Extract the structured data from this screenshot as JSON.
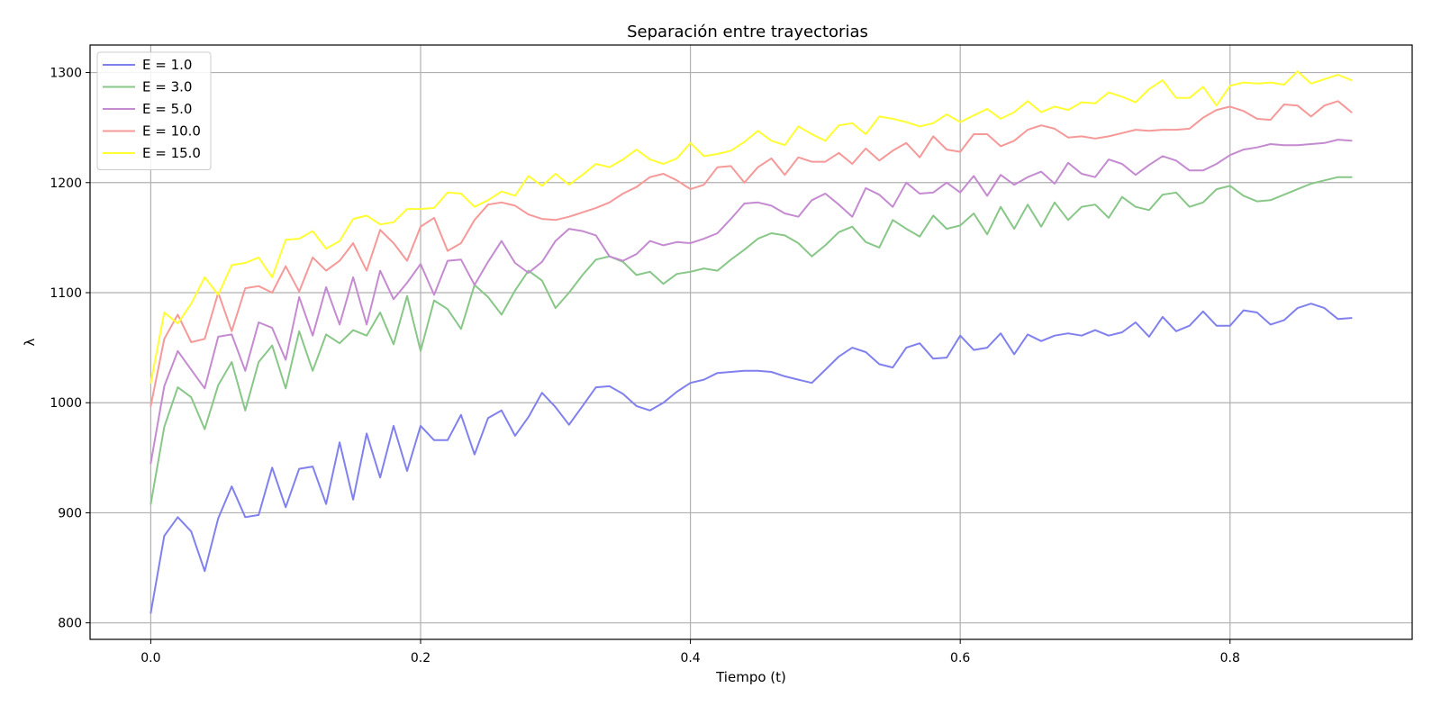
{
  "chart_data": {
    "type": "line",
    "title": "Separación entre trayectorias",
    "xlabel": "Tiempo (t)",
    "ylabel": "λ",
    "xlim": [
      -0.045,
      0.935
    ],
    "ylim": [
      785,
      1325
    ],
    "x_ticks": [
      0.0,
      0.2,
      0.4,
      0.6,
      0.8
    ],
    "x_tick_labels": [
      "0.0",
      "0.2",
      "0.4",
      "0.6",
      "0.8"
    ],
    "y_ticks": [
      800,
      900,
      1000,
      1100,
      1200,
      1300
    ],
    "y_tick_labels": [
      "800",
      "900",
      "1000",
      "1100",
      "1200",
      "1300"
    ],
    "grid": true,
    "legend_position": "upper-left",
    "x": [
      0.0,
      0.01,
      0.02,
      0.03,
      0.04,
      0.05,
      0.06,
      0.07,
      0.08,
      0.09,
      0.1,
      0.11,
      0.12,
      0.13,
      0.14,
      0.15,
      0.16,
      0.17,
      0.18,
      0.19,
      0.2,
      0.21,
      0.22,
      0.23,
      0.24,
      0.25,
      0.26,
      0.27,
      0.28,
      0.29,
      0.3,
      0.31,
      0.32,
      0.33,
      0.34,
      0.35,
      0.36,
      0.37,
      0.38,
      0.39,
      0.4,
      0.41,
      0.42,
      0.43,
      0.44,
      0.45,
      0.46,
      0.47,
      0.48,
      0.49,
      0.5,
      0.51,
      0.52,
      0.53,
      0.54,
      0.55,
      0.56,
      0.57,
      0.58,
      0.59,
      0.6,
      0.61,
      0.62,
      0.63,
      0.64,
      0.65,
      0.66,
      0.67,
      0.68,
      0.69,
      0.7,
      0.71,
      0.72,
      0.73,
      0.74,
      0.75,
      0.76,
      0.77,
      0.78,
      0.79,
      0.8,
      0.81,
      0.82,
      0.83,
      0.84,
      0.85,
      0.86,
      0.87,
      0.88,
      0.89
    ],
    "series": [
      {
        "name": "E = 1.0",
        "color": "#8080ee",
        "values": [
          809,
          879,
          896,
          883,
          847,
          895,
          924,
          896,
          898,
          941,
          905,
          940,
          942,
          908,
          964,
          912,
          972,
          932,
          979,
          938,
          979,
          966,
          966,
          989,
          953,
          986,
          993,
          970,
          987,
          1009,
          996,
          980,
          997,
          1014,
          1015,
          1008,
          997,
          993,
          1000,
          1010,
          1018,
          1021,
          1027,
          1028,
          1029,
          1029,
          1028,
          1024,
          1021,
          1018,
          1030,
          1042,
          1050,
          1046,
          1035,
          1032,
          1050,
          1054,
          1040,
          1041,
          1061,
          1048,
          1050,
          1063,
          1044,
          1062,
          1056,
          1061,
          1063,
          1061,
          1066,
          1061,
          1064,
          1073,
          1060,
          1078,
          1065,
          1070,
          1083,
          1070,
          1070,
          1084,
          1082,
          1071,
          1075,
          1086,
          1090,
          1086,
          1076,
          1077
        ]
      },
      {
        "name": "E = 3.0",
        "color": "#88c788",
        "values": [
          908,
          978,
          1014,
          1005,
          976,
          1016,
          1037,
          993,
          1037,
          1052,
          1013,
          1065,
          1029,
          1062,
          1054,
          1066,
          1061,
          1082,
          1053,
          1097,
          1047,
          1093,
          1085,
          1067,
          1107,
          1096,
          1080,
          1102,
          1120,
          1111,
          1086,
          1100,
          1116,
          1130,
          1133,
          1128,
          1116,
          1119,
          1108,
          1117,
          1119,
          1122,
          1120,
          1130,
          1139,
          1149,
          1154,
          1152,
          1145,
          1133,
          1143,
          1155,
          1160,
          1146,
          1141,
          1166,
          1158,
          1151,
          1170,
          1158,
          1161,
          1172,
          1153,
          1178,
          1158,
          1180,
          1160,
          1182,
          1166,
          1178,
          1180,
          1168,
          1187,
          1178,
          1175,
          1189,
          1191,
          1178,
          1182,
          1194,
          1197,
          1188,
          1183,
          1184,
          1189,
          1194,
          1199,
          1202,
          1205,
          1205
        ]
      },
      {
        "name": "E = 5.0",
        "color": "#c48bd0",
        "values": [
          945,
          1015,
          1047,
          1030,
          1013,
          1060,
          1062,
          1029,
          1073,
          1068,
          1039,
          1096,
          1061,
          1105,
          1071,
          1114,
          1071,
          1120,
          1094,
          1109,
          1126,
          1098,
          1129,
          1130,
          1107,
          1128,
          1147,
          1127,
          1118,
          1128,
          1147,
          1158,
          1156,
          1152,
          1133,
          1129,
          1135,
          1147,
          1143,
          1146,
          1145,
          1149,
          1154,
          1167,
          1181,
          1182,
          1179,
          1172,
          1169,
          1184,
          1190,
          1180,
          1169,
          1195,
          1189,
          1178,
          1200,
          1190,
          1191,
          1200,
          1191,
          1206,
          1188,
          1207,
          1198,
          1205,
          1210,
          1199,
          1218,
          1208,
          1205,
          1221,
          1217,
          1207,
          1216,
          1224,
          1220,
          1211,
          1211,
          1217,
          1225,
          1230,
          1232,
          1235,
          1234,
          1234,
          1235,
          1236,
          1239,
          1238
        ]
      },
      {
        "name": "E = 10.0",
        "color": "#f59999",
        "values": [
          997,
          1058,
          1080,
          1055,
          1058,
          1100,
          1065,
          1104,
          1106,
          1100,
          1124,
          1101,
          1132,
          1120,
          1129,
          1145,
          1120,
          1157,
          1145,
          1129,
          1160,
          1168,
          1138,
          1145,
          1166,
          1180,
          1182,
          1179,
          1171,
          1167,
          1166,
          1169,
          1173,
          1177,
          1182,
          1190,
          1196,
          1205,
          1208,
          1202,
          1194,
          1198,
          1214,
          1215,
          1200,
          1214,
          1222,
          1207,
          1223,
          1219,
          1219,
          1227,
          1217,
          1231,
          1220,
          1229,
          1236,
          1223,
          1242,
          1230,
          1228,
          1244,
          1244,
          1233,
          1238,
          1248,
          1252,
          1249,
          1241,
          1242,
          1240,
          1242,
          1245,
          1248,
          1247,
          1248,
          1248,
          1249,
          1259,
          1266,
          1269,
          1265,
          1258,
          1257,
          1271,
          1270,
          1260,
          1270,
          1274,
          1264
        ]
      },
      {
        "name": "E = 15.0",
        "color": "#ffff33",
        "values": [
          1018,
          1082,
          1072,
          1090,
          1114,
          1098,
          1125,
          1127,
          1132,
          1114,
          1148,
          1149,
          1156,
          1140,
          1147,
          1167,
          1170,
          1162,
          1164,
          1176,
          1176,
          1177,
          1191,
          1190,
          1178,
          1184,
          1192,
          1188,
          1206,
          1197,
          1208,
          1198,
          1207,
          1217,
          1214,
          1221,
          1230,
          1221,
          1217,
          1222,
          1236,
          1224,
          1226,
          1229,
          1237,
          1247,
          1238,
          1234,
          1251,
          1244,
          1238,
          1252,
          1254,
          1244,
          1260,
          1258,
          1255,
          1251,
          1254,
          1262,
          1255,
          1261,
          1267,
          1258,
          1264,
          1274,
          1264,
          1269,
          1266,
          1273,
          1272,
          1282,
          1278,
          1273,
          1285,
          1293,
          1277,
          1277,
          1287,
          1270,
          1288,
          1291,
          1290,
          1291,
          1289,
          1301,
          1290,
          1294,
          1298,
          1293
        ]
      }
    ]
  }
}
